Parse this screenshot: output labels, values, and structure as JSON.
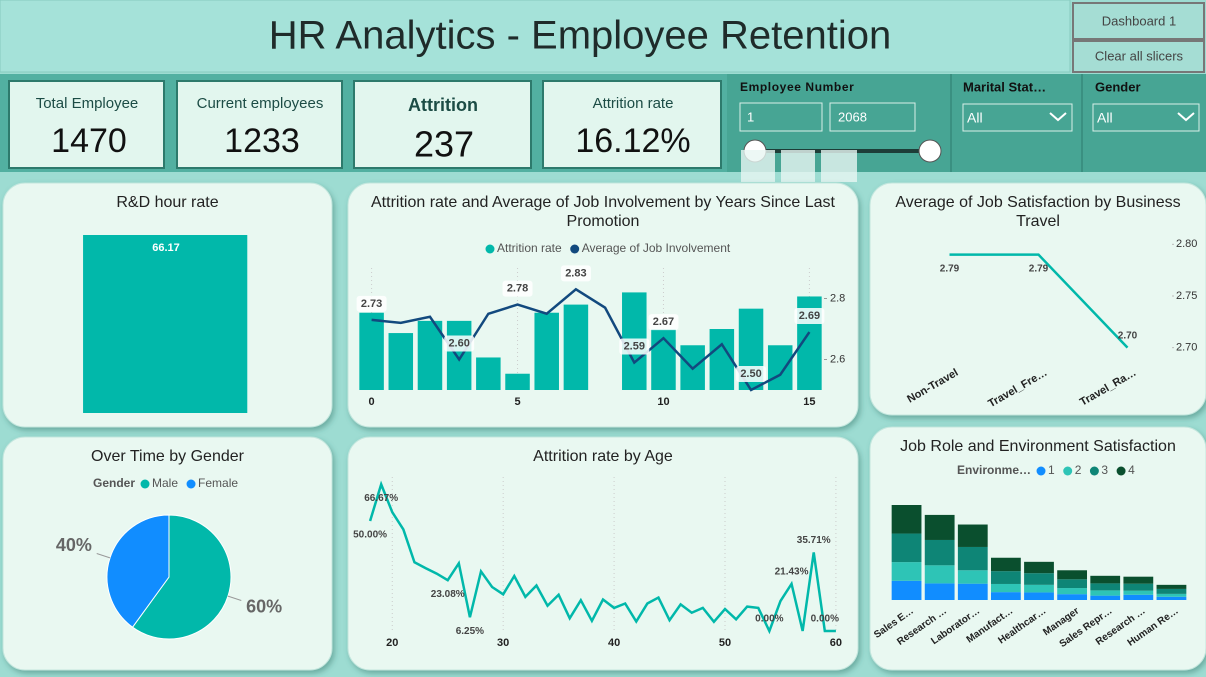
{
  "header": {
    "title": "HR Analytics - Employee Retention"
  },
  "buttons": [
    "Dashboard 1",
    "Clear all slicers"
  ],
  "kpis": [
    {
      "label": "Total Employee",
      "value": 1470
    },
    {
      "label": "Current employees",
      "value": 1233
    },
    {
      "label": "Attrition",
      "value": 237
    },
    {
      "label": "Attrition rate",
      "value": "16.12%"
    }
  ],
  "slicers": [
    {
      "title": "Employee Number",
      "from": 1,
      "to": 2068
    },
    {
      "title": "Marital Stat…",
      "selection": "All"
    },
    {
      "title": "Gender",
      "selection": "All"
    }
  ],
  "chart_data": [
    {
      "type": "bar",
      "title": "R&D hour rate",
      "categories": [
        null
      ],
      "values": [
        66.17
      ],
      "color": "#01B8AA"
    },
    {
      "type": "combo",
      "title": "Attrition rate and Average of Job Involvement by Years Since Last Promotion",
      "x": [
        0,
        1,
        2,
        3,
        4,
        5,
        6,
        7,
        8,
        9,
        10,
        11,
        12,
        13,
        14,
        15
      ],
      "xlim": [
        -0.5,
        15.5
      ],
      "xticks": [
        0,
        5,
        10,
        15
      ],
      "ylim": [
        0,
        0.3
      ],
      "y2lim": [
        2.5,
        2.9
      ],
      "y2ticks": [
        2.6,
        2.8
      ],
      "series": [
        {
          "name": "Attrition rate",
          "mark": "bar",
          "color": "#01B8AA",
          "values": [
            0.19,
            0.14,
            0.17,
            0.17,
            0.08,
            0.04,
            0.19,
            0.21,
            0,
            0.24,
            0.15,
            0.11,
            0.15,
            0.2,
            0.11,
            0.23
          ]
        },
        {
          "name": "Average of Job Involvement",
          "mark": "line",
          "axis": "y2",
          "color": "#12497E",
          "values": [
            2.73,
            2.72,
            2.74,
            2.6,
            2.75,
            2.78,
            2.75,
            2.83,
            2.77,
            2.59,
            2.67,
            2.57,
            2.65,
            2.5,
            2.55,
            2.69
          ],
          "value_labels": [
            "2.73",
            null,
            null,
            "2.60",
            null,
            "2.78",
            null,
            "2.83",
            null,
            "2.59",
            "2.67",
            null,
            null,
            "2.50",
            null,
            "2.69"
          ]
        }
      ]
    },
    {
      "type": "line",
      "title": "Average of Job Satisfaction by Business Travel",
      "categories": [
        "Non-Travel",
        "Travel_Fre…",
        "Travel_Ra…"
      ],
      "values": [
        2.79,
        2.79,
        2.7
      ],
      "value_labels": [
        "2.79",
        "2.79",
        "2.70"
      ],
      "color": "#01B8AA",
      "ylim": [
        2.69,
        2.81
      ],
      "yticks": [
        {
          "value": 2.7,
          "label": "2.70"
        },
        {
          "value": 2.75,
          "label": "2.75"
        },
        {
          "value": 2.8,
          "label": "2.80"
        }
      ]
    },
    {
      "type": "pie",
      "title": "Over Time by Gender",
      "legend_title": "Gender",
      "categories": [
        "Male",
        "Female"
      ],
      "values": [
        60,
        40
      ],
      "value_labels": [
        "60%",
        "40%"
      ],
      "colors": [
        "#01B8AA",
        "#118DFF"
      ]
    },
    {
      "type": "line",
      "title": "Attrition rate by Age",
      "x": [
        18,
        19,
        20,
        21,
        22,
        23,
        24,
        25,
        26,
        27,
        28,
        29,
        30,
        31,
        32,
        33,
        34,
        35,
        36,
        37,
        38,
        39,
        40,
        41,
        42,
        43,
        44,
        45,
        46,
        47,
        48,
        49,
        50,
        51,
        52,
        53,
        54,
        55,
        56,
        57,
        58,
        59,
        60
      ],
      "values": [
        50,
        66.67,
        54,
        46.15,
        31.25,
        28.57,
        26.09,
        23.08,
        30.77,
        6.25,
        27.08,
        20,
        16.67,
        25,
        15.52,
        20.69,
        11.48,
        16.46,
        5.8,
        14,
        4.6,
        14.3,
        10.5,
        12.5,
        4.3,
        12.5,
        15.2,
        4.9,
        12.1,
        8.3,
        10.5,
        4.2,
        10,
        5.3,
        11.1,
        10.5,
        0,
        13.6,
        21.43,
        0,
        35.71,
        0,
        0
      ],
      "value_labels": [
        "50.00%",
        "66.67%",
        null,
        null,
        null,
        null,
        null,
        "23.08%",
        null,
        "6.25%",
        null,
        null,
        null,
        null,
        null,
        null,
        null,
        null,
        null,
        null,
        null,
        null,
        null,
        null,
        null,
        null,
        null,
        null,
        null,
        null,
        null,
        null,
        null,
        null,
        null,
        null,
        "0.00%",
        null,
        "21.43%",
        null,
        "35.71%",
        "0.00%",
        null
      ],
      "color": "#01B8AA",
      "xlim": [
        17,
        61
      ],
      "xticks": [
        20,
        30,
        40,
        50,
        60
      ],
      "ylim": [
        0,
        70
      ]
    },
    {
      "type": "ribbon",
      "title": "Job Role and Environment Satisfaction",
      "legend_title": "Environme…",
      "categories": [
        "Sales E…",
        "Research …",
        "Laborator…",
        "Manufact…",
        "Healthcar…",
        "Manager",
        "Sales Repr…",
        "Research …",
        "Human Re…"
      ],
      "series": [
        {
          "name": "1",
          "color": "#118DFF",
          "values": [
            66,
            57,
            56,
            27,
            26,
            20,
            15,
            18,
            11
          ]
        },
        {
          "name": "2",
          "color": "#2EC4B6",
          "values": [
            64,
            62,
            46,
            28,
            26,
            21,
            18,
            14,
            10
          ]
        },
        {
          "name": "3",
          "color": "#0E8576",
          "values": [
            98,
            87,
            80,
            44,
            40,
            30,
            24,
            24,
            17
          ]
        },
        {
          "name": "4",
          "color": "#0A4F2E",
          "values": [
            98,
            86,
            77,
            46,
            39,
            31,
            26,
            24,
            14
          ]
        }
      ]
    }
  ]
}
